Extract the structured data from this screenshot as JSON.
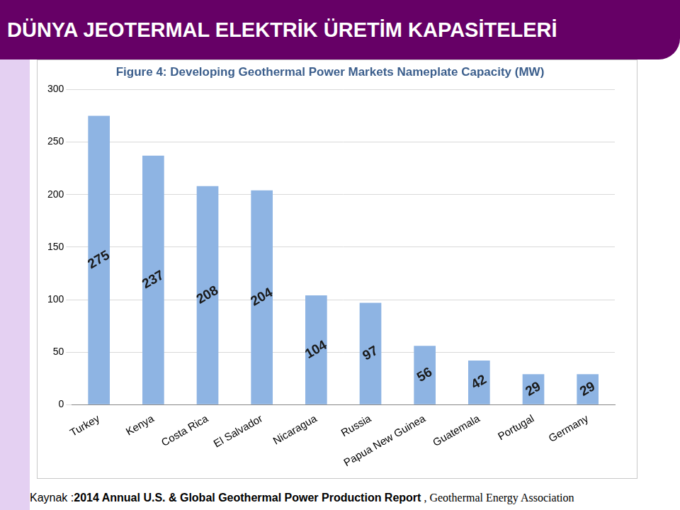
{
  "slide": {
    "heading": "DÜNYA JEOTERMAL ELEKTRİK ÜRETİM KAPASİTELERİ",
    "source": [
      "Kaynak :",
      "2014 Annual U.S. & Global Geothermal Power Production Report",
      " , Geothermal Energy Association"
    ]
  },
  "chart_data": {
    "type": "bar",
    "title": "Figure 4: Developing Geothermal Power Markets Nameplate Capacity (MW)",
    "categories": [
      "Turkey",
      "Kenya",
      "Costa Rica",
      "El Salvador",
      "Nicaragua",
      "Russia",
      "Papua New Guinea",
      "Guatemala",
      "Portugal",
      "Germany"
    ],
    "values": [
      275,
      237,
      208,
      204,
      104,
      97,
      56,
      42,
      29,
      29
    ],
    "color": "#8eb4e3",
    "ylim": [
      0,
      300
    ],
    "yticks": [
      0,
      50,
      100,
      150,
      200,
      250,
      300
    ],
    "grid": true,
    "data_labels": true
  }
}
